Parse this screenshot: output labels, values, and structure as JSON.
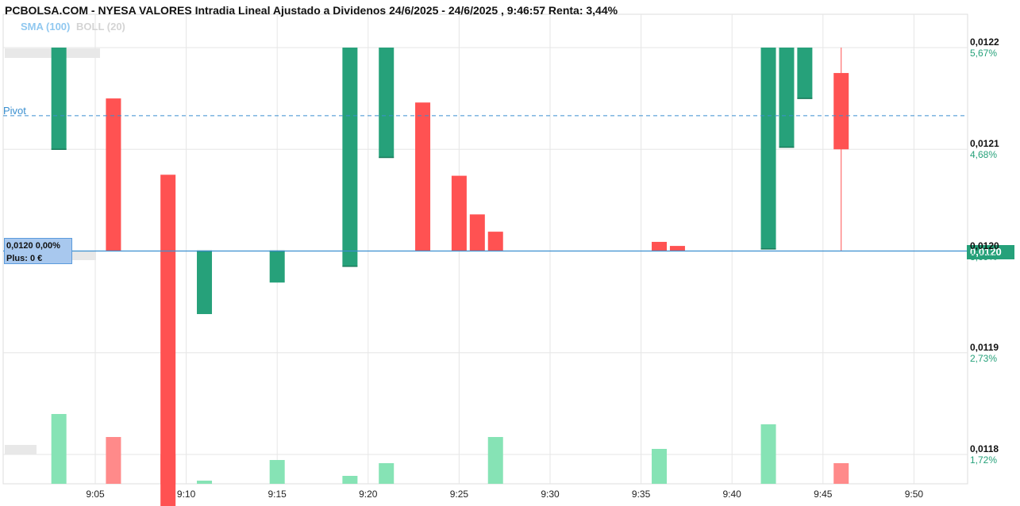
{
  "header": {
    "title": "PCBOLSA.COM - NYESA VALORES Intradia Lineal Ajustado a Dividenos 24/6/2025 - 24/6/2025 , 9:46:57 Renta: 3,44%",
    "indicators": [
      {
        "label": "SMA (100)",
        "color": "#90c8f0"
      },
      {
        "label": "BOLL (20)",
        "color": "#d4d4d4"
      }
    ],
    "pivot_label": "Pivot"
  },
  "current": {
    "box_value": "0,0120  0,00%",
    "box_plus": "Plus: 0 €",
    "tag": "0,0120"
  },
  "colors": {
    "up": "#26a17a",
    "down": "#ff5252",
    "vol_up": "#86e3b5",
    "vol_down": "#ff8a8a",
    "grid": "#e6e6e6",
    "pivot": "#3a8fd0",
    "current_line": "#3a8fd0"
  },
  "chart_data": {
    "type": "bar",
    "y_axis": {
      "ylim": [
        0.011734,
        0.012231
      ],
      "ticks": [
        {
          "value": 0.0122,
          "label": "0,0122",
          "pct": "5,67%"
        },
        {
          "value": 0.0121,
          "label": "0,0121",
          "pct": "4,68%"
        },
        {
          "value": 0.012,
          "label": "0,0120",
          "pct": "3,69%"
        },
        {
          "value": 0.0119,
          "label": "0,0119",
          "pct": "2,73%"
        },
        {
          "value": 0.0118,
          "label": "0,0118",
          "pct": "1,72%"
        }
      ]
    },
    "x_axis": {
      "ticks": [
        "9:05",
        "9:10",
        "9:15",
        "9:20",
        "9:25",
        "9:30",
        "9:35",
        "9:40",
        "9:45",
        "9:50"
      ],
      "tick_minutes": [
        5,
        10,
        15,
        20,
        25,
        30,
        35,
        40,
        45,
        50
      ]
    },
    "pivot": 0.012133,
    "current_price": 0.012,
    "candles": [
      {
        "minute": 3,
        "open": 0.0121,
        "close": 0.0122,
        "dir": "up"
      },
      {
        "minute": 6,
        "open": 0.01215,
        "close": 0.012,
        "dir": "down"
      },
      {
        "minute": 9,
        "open": 0.012075,
        "close": 0.011734,
        "dir": "down"
      },
      {
        "minute": 11,
        "open": 0.012,
        "close": 0.011938,
        "dir": "up"
      },
      {
        "minute": 15,
        "open": 0.012,
        "close": 0.011969,
        "dir": "up"
      },
      {
        "minute": 19,
        "open": 0.011985,
        "close": 0.0122,
        "dir": "up"
      },
      {
        "minute": 21,
        "open": 0.012092,
        "close": 0.0122,
        "dir": "up"
      },
      {
        "minute": 23,
        "open": 0.012146,
        "close": 0.012,
        "dir": "down"
      },
      {
        "minute": 25,
        "open": 0.012074,
        "close": 0.012,
        "dir": "down"
      },
      {
        "minute": 26,
        "open": 0.012036,
        "close": 0.012,
        "dir": "down"
      },
      {
        "minute": 27,
        "open": 0.012019,
        "close": 0.012,
        "dir": "down"
      },
      {
        "minute": 36,
        "open": 0.012009,
        "close": 0.012,
        "dir": "down"
      },
      {
        "minute": 37,
        "open": 0.012005,
        "close": 0.012,
        "dir": "down"
      },
      {
        "minute": 42,
        "open": 0.012002,
        "close": 0.0122,
        "dir": "up"
      },
      {
        "minute": 43,
        "open": 0.012102,
        "close": 0.0122,
        "dir": "up"
      },
      {
        "minute": 44,
        "open": 0.01215,
        "close": 0.0122,
        "dir": "up"
      },
      {
        "minute": 46,
        "open": 0.012175,
        "close": 0.0121,
        "dir": "down",
        "wick_low": 0.012,
        "wick_high": 0.0122
      }
    ],
    "volume": {
      "max": 90,
      "bars": [
        {
          "minute": 3,
          "value": 88,
          "dir": "up"
        },
        {
          "minute": 6,
          "value": 59,
          "dir": "down"
        },
        {
          "minute": 9,
          "value": 37,
          "dir": "down"
        },
        {
          "minute": 11,
          "value": 4,
          "dir": "up"
        },
        {
          "minute": 15,
          "value": 30,
          "dir": "up"
        },
        {
          "minute": 19,
          "value": 10,
          "dir": "up"
        },
        {
          "minute": 21,
          "value": 26,
          "dir": "up"
        },
        {
          "minute": 27,
          "value": 59,
          "dir": "up"
        },
        {
          "minute": 36,
          "value": 44,
          "dir": "up"
        },
        {
          "minute": 42,
          "value": 75,
          "dir": "up"
        },
        {
          "minute": 46,
          "value": 26,
          "dir": "down"
        }
      ]
    }
  }
}
